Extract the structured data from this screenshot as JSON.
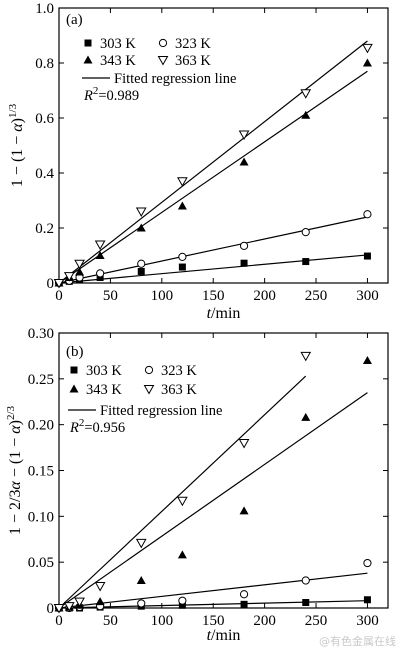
{
  "watermark": "@有色金属在线",
  "chart_data": [
    {
      "type": "scatter",
      "panel": "(a)",
      "xlabel": "t/min",
      "ylabel": "1 − (1 − α)^1/3",
      "xlim": [
        0,
        320
      ],
      "ylim": [
        0,
        1.0
      ],
      "xticks": [
        0,
        50,
        100,
        150,
        200,
        250,
        300
      ],
      "xtick_labels": [
        "0",
        "50",
        "100",
        "150",
        "200",
        "250",
        "300"
      ],
      "yticks": [
        0,
        0.2,
        0.4,
        0.6,
        0.8,
        1.0
      ],
      "ytick_labels": [
        "0",
        "0.2",
        "0.4",
        "0.6",
        "0.8",
        "1.0"
      ],
      "series": [
        {
          "name": "303 K",
          "marker": "square-filled",
          "x": [
            0,
            10,
            20,
            40,
            80,
            120,
            180,
            240,
            300
          ],
          "y": [
            0,
            0.006,
            0.012,
            0.02,
            0.042,
            0.058,
            0.072,
            0.078,
            0.098
          ],
          "fit": [
            [
              0,
              0
            ],
            [
              300,
              0.102
            ]
          ]
        },
        {
          "name": "323 K",
          "marker": "circle-open",
          "x": [
            0,
            10,
            20,
            40,
            80,
            120,
            180,
            240,
            300
          ],
          "y": [
            0,
            0.008,
            0.02,
            0.035,
            0.07,
            0.095,
            0.135,
            0.185,
            0.25
          ],
          "fit": [
            [
              0,
              0
            ],
            [
              300,
              0.24
            ]
          ]
        },
        {
          "name": "343 K",
          "marker": "triangle-up-filled",
          "x": [
            0,
            10,
            20,
            40,
            80,
            120,
            180,
            240,
            300
          ],
          "y": [
            0,
            0.02,
            0.04,
            0.1,
            0.2,
            0.28,
            0.44,
            0.61,
            0.8
          ],
          "fit": [
            [
              0,
              0
            ],
            [
              300,
              0.77
            ]
          ]
        },
        {
          "name": "363 K",
          "marker": "triangle-down-open",
          "x": [
            0,
            10,
            20,
            40,
            80,
            120,
            180,
            240,
            300
          ],
          "y": [
            0,
            0.025,
            0.07,
            0.14,
            0.26,
            0.37,
            0.54,
            0.69,
            0.855
          ],
          "fit": [
            [
              0,
              0
            ],
            [
              300,
              0.88
            ]
          ]
        }
      ],
      "legend": {
        "entries": [
          "303 K",
          "323 K",
          "343 K",
          "363 K"
        ],
        "fit_label": "Fitted regression line",
        "r2_text": "R²=0.989"
      }
    },
    {
      "type": "scatter",
      "panel": "(b)",
      "xlabel": "t/min",
      "ylabel": "1 − 2/3α − (1 − α)^2/3",
      "xlim": [
        0,
        320
      ],
      "ylim": [
        0,
        0.3
      ],
      "xticks": [
        0,
        50,
        100,
        150,
        200,
        250,
        300
      ],
      "xtick_labels": [
        "0",
        "50",
        "100",
        "150",
        "200",
        "250",
        "300"
      ],
      "yticks": [
        0,
        0.05,
        0.1,
        0.15,
        0.2,
        0.25,
        0.3
      ],
      "ytick_labels": [
        "0",
        "0.05",
        "0.10",
        "0.15",
        "0.20",
        "0.25",
        "0.30"
      ],
      "series": [
        {
          "name": "303 K",
          "marker": "square-filled",
          "x": [
            0,
            10,
            20,
            40,
            80,
            120,
            180,
            240,
            300
          ],
          "y": [
            0,
            0,
            0,
            0.001,
            0.002,
            0.003,
            0.004,
            0.006,
            0.009
          ],
          "fit": [
            [
              0,
              0
            ],
            [
              300,
              0.008
            ]
          ]
        },
        {
          "name": "323 K",
          "marker": "circle-open",
          "x": [
            0,
            10,
            20,
            40,
            80,
            120,
            180,
            240,
            300
          ],
          "y": [
            0,
            0,
            0.001,
            0.002,
            0.005,
            0.008,
            0.015,
            0.03,
            0.049
          ],
          "fit": [
            [
              0,
              0
            ],
            [
              300,
              0.038
            ]
          ]
        },
        {
          "name": "343 K",
          "marker": "triangle-up-filled",
          "x": [
            0,
            10,
            20,
            40,
            80,
            120,
            180,
            240,
            300
          ],
          "y": [
            0,
            0.001,
            0.003,
            0.007,
            0.03,
            0.058,
            0.106,
            0.208,
            0.27
          ],
          "fit": [
            [
              0,
              0
            ],
            [
              300,
              0.235
            ]
          ]
        },
        {
          "name": "363 K",
          "marker": "triangle-down-open",
          "x": [
            0,
            10,
            20,
            40,
            80,
            120,
            180,
            240
          ],
          "y": [
            0,
            0.002,
            0.007,
            0.024,
            0.071,
            0.117,
            0.18,
            0.275
          ],
          "fit": [
            [
              0,
              0
            ],
            [
              240,
              0.253
            ]
          ]
        }
      ],
      "legend": {
        "entries": [
          "303 K",
          "323 K",
          "343 K",
          "363 K"
        ],
        "fit_label": "Fitted regression line",
        "r2_text": "R²=0.956"
      }
    }
  ]
}
